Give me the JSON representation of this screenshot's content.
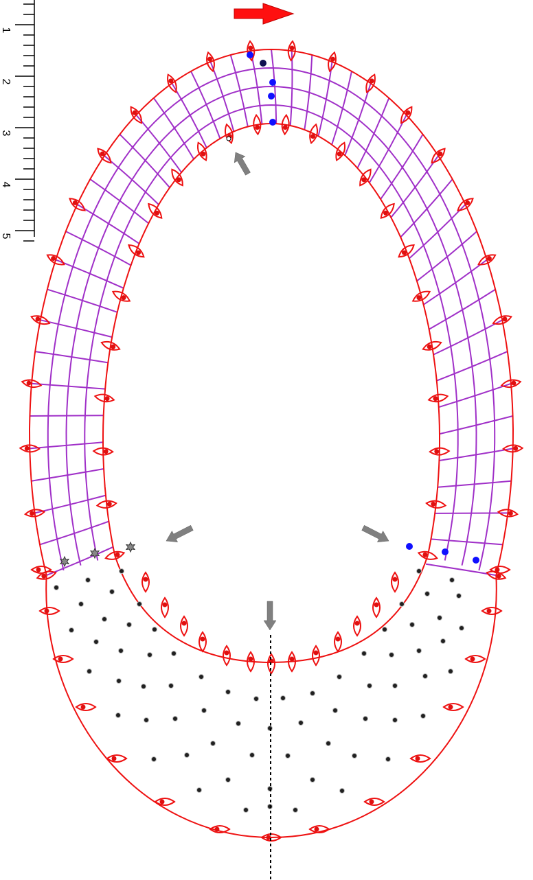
{
  "ruler": {
    "labels": [
      "1",
      "2",
      "3",
      "4",
      "5"
    ]
  },
  "colors": {
    "outline": "#ee1111",
    "mesh": "#a030c8",
    "marker_dot": "#e01010",
    "blue_dot": "#1010ff",
    "navy_dot": "#101050",
    "interior_dot": "#202020",
    "arrow_red": "#ff1010",
    "arrow_gray": "#808080",
    "star": "#888888"
  },
  "icons": {
    "top_arrow": "right-arrow-icon",
    "inner_arrows": "gray-arrow-icon",
    "stars": "star-marker-icon",
    "midline": "dashed-midline"
  }
}
